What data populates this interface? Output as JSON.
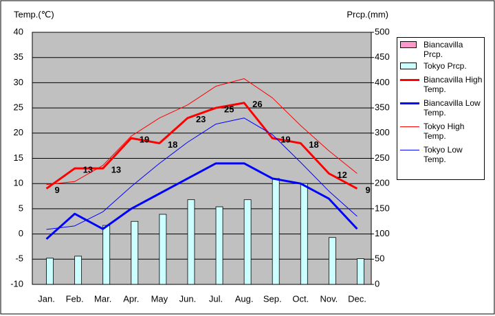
{
  "chart_data": {
    "type": "combo",
    "y_label": "Temp.(℃)",
    "y2_label": "Prcp.(mm)",
    "categories": [
      "Jan.",
      "Feb.",
      "Mar.",
      "Apr.",
      "May",
      "Jun.",
      "Jul.",
      "Aug.",
      "Sep.",
      "Oct.",
      "Nov.",
      "Dec."
    ],
    "ylim": [
      -10,
      40
    ],
    "yticks": [
      -10,
      -5,
      0,
      5,
      10,
      15,
      20,
      25,
      30,
      35,
      40
    ],
    "y2lim": [
      0,
      500
    ],
    "y2ticks": [
      0,
      50,
      100,
      150,
      200,
      250,
      300,
      350,
      400,
      450,
      500
    ],
    "grid": true,
    "legend": "right",
    "series": [
      {
        "name": "Biancavilla Prcp.",
        "type": "bar",
        "axis": "y2",
        "color": "#ff99cc",
        "values": [
          null,
          null,
          null,
          null,
          null,
          null,
          null,
          null,
          null,
          null,
          null,
          null
        ]
      },
      {
        "name": "Tokyo Prcp.",
        "type": "bar",
        "axis": "y2",
        "color": "#ccffff",
        "values": [
          52,
          56,
          117,
          125,
          139,
          168,
          154,
          168,
          210,
          200,
          93,
          51
        ]
      },
      {
        "name": "Biancavilla High Temp.",
        "type": "line",
        "color": "#ff0000",
        "width": 3,
        "labels": true,
        "values": [
          9,
          13,
          13,
          19,
          18,
          23,
          25,
          26,
          19,
          18,
          12,
          9
        ]
      },
      {
        "name": "Biancavilla Low Temp.",
        "type": "line",
        "color": "#0000ff",
        "width": 3,
        "values": [
          -1,
          4,
          1,
          5,
          8,
          11,
          14,
          14,
          11,
          10,
          7,
          1
        ]
      },
      {
        "name": "Tokyo High Temp.",
        "type": "line",
        "color": "#ff0000",
        "width": 1,
        "values": [
          9.8,
          10.4,
          13.6,
          19.4,
          23,
          25.6,
          29.3,
          30.8,
          27,
          21.5,
          16.5,
          12
        ]
      },
      {
        "name": "Tokyo Low Temp.",
        "type": "line",
        "color": "#0000ff",
        "width": 1,
        "values": [
          0.9,
          1.6,
          4.4,
          9.4,
          14,
          18.2,
          21.8,
          23,
          19.7,
          14.2,
          8.5,
          3.5
        ]
      }
    ]
  }
}
